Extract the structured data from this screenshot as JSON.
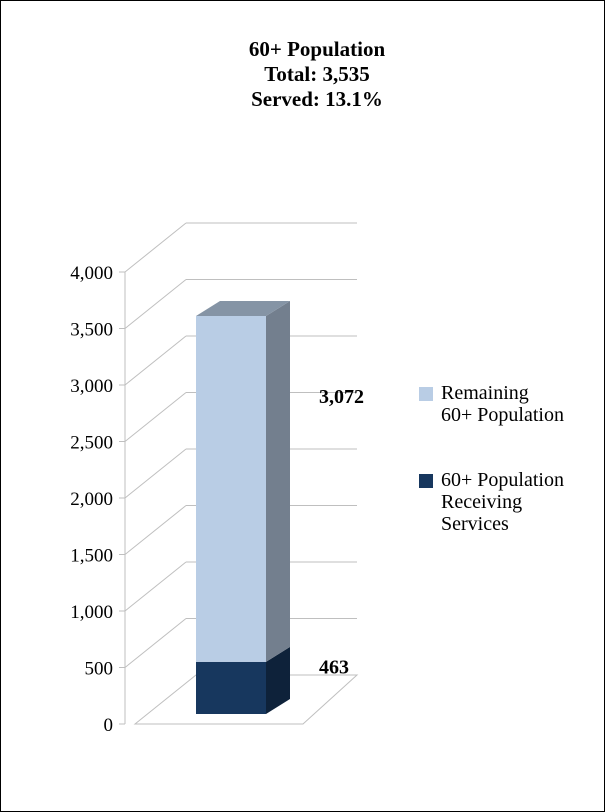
{
  "chart_data": {
    "type": "bar",
    "stacked": true,
    "three_d": true,
    "title": [
      "60+ Population",
      "Total: 3,535",
      "Served: 13.1%"
    ],
    "categories": [
      ""
    ],
    "series": [
      {
        "name": "60+ Population Receiving Services",
        "values": [
          463
        ],
        "color": "#17375e",
        "label": "463"
      },
      {
        "name": "Remaining 60+ Population",
        "values": [
          3072
        ],
        "color": "#b9cde5",
        "label": "3,072"
      }
    ],
    "legend_order": [
      {
        "lines": [
          "Remaining",
          "60+ Population"
        ],
        "color": "#b9cde5"
      },
      {
        "lines": [
          "60+ Population",
          "Receiving",
          "Services"
        ],
        "color": "#17375e"
      }
    ],
    "yticks": [
      "0",
      "500",
      "1,000",
      "1,500",
      "2,000",
      "2,500",
      "3,000",
      "3,500",
      "4,000"
    ],
    "ylim": [
      0,
      4000
    ],
    "grid": true,
    "legend_position": "right"
  }
}
